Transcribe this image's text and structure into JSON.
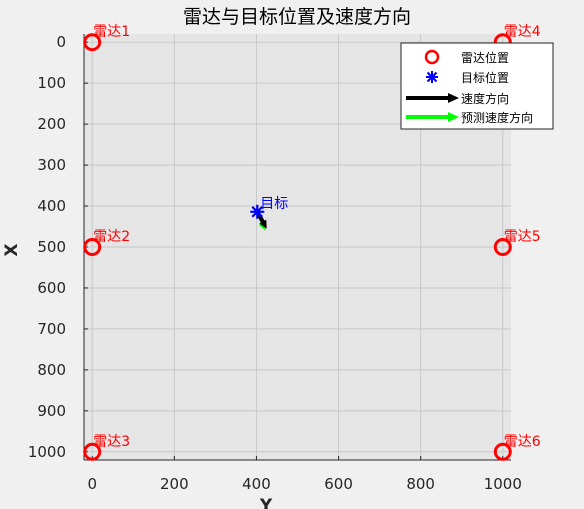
{
  "chart_data": {
    "type": "scatter",
    "title": "雷达与目标位置及速度方向",
    "xlabel": "Y",
    "ylabel": "X",
    "xlim": [
      -20,
      1020
    ],
    "ylim": [
      1020,
      -20
    ],
    "y_reversed": true,
    "xticks": [
      0,
      200,
      400,
      600,
      800,
      1000
    ],
    "yticks": [
      0,
      100,
      200,
      300,
      400,
      500,
      600,
      700,
      800,
      900,
      1000
    ],
    "grid": true,
    "radars": [
      {
        "name": "雷达1",
        "x": 0,
        "y": 0
      },
      {
        "name": "雷达2",
        "x": 0,
        "y": 500
      },
      {
        "name": "雷达3",
        "x": 0,
        "y": 1000
      },
      {
        "name": "雷达4",
        "x": 1000,
        "y": 0
      },
      {
        "name": "雷达5",
        "x": 1000,
        "y": 500
      },
      {
        "name": "雷达6",
        "x": 1000,
        "y": 1000
      }
    ],
    "target": {
      "name": "目标",
      "x": 402,
      "y": 414
    },
    "velocity_arrow": {
      "from": [
        402,
        414
      ],
      "to": [
        425,
        455
      ]
    },
    "predicted_velocity_arrow": {
      "from": [
        402,
        414
      ],
      "to": [
        422,
        460
      ]
    },
    "legend": {
      "position": "top-right",
      "entries": [
        "雷达位置",
        "目标位置",
        "速度方向",
        "预测速度方向"
      ]
    },
    "colors": {
      "radar": "#ff0000",
      "target": "#0000ff",
      "velocity": "#000000",
      "predicted": "#00ff00",
      "plot_bg": "#e5e5e5",
      "grid": "#c8c8c8"
    }
  }
}
